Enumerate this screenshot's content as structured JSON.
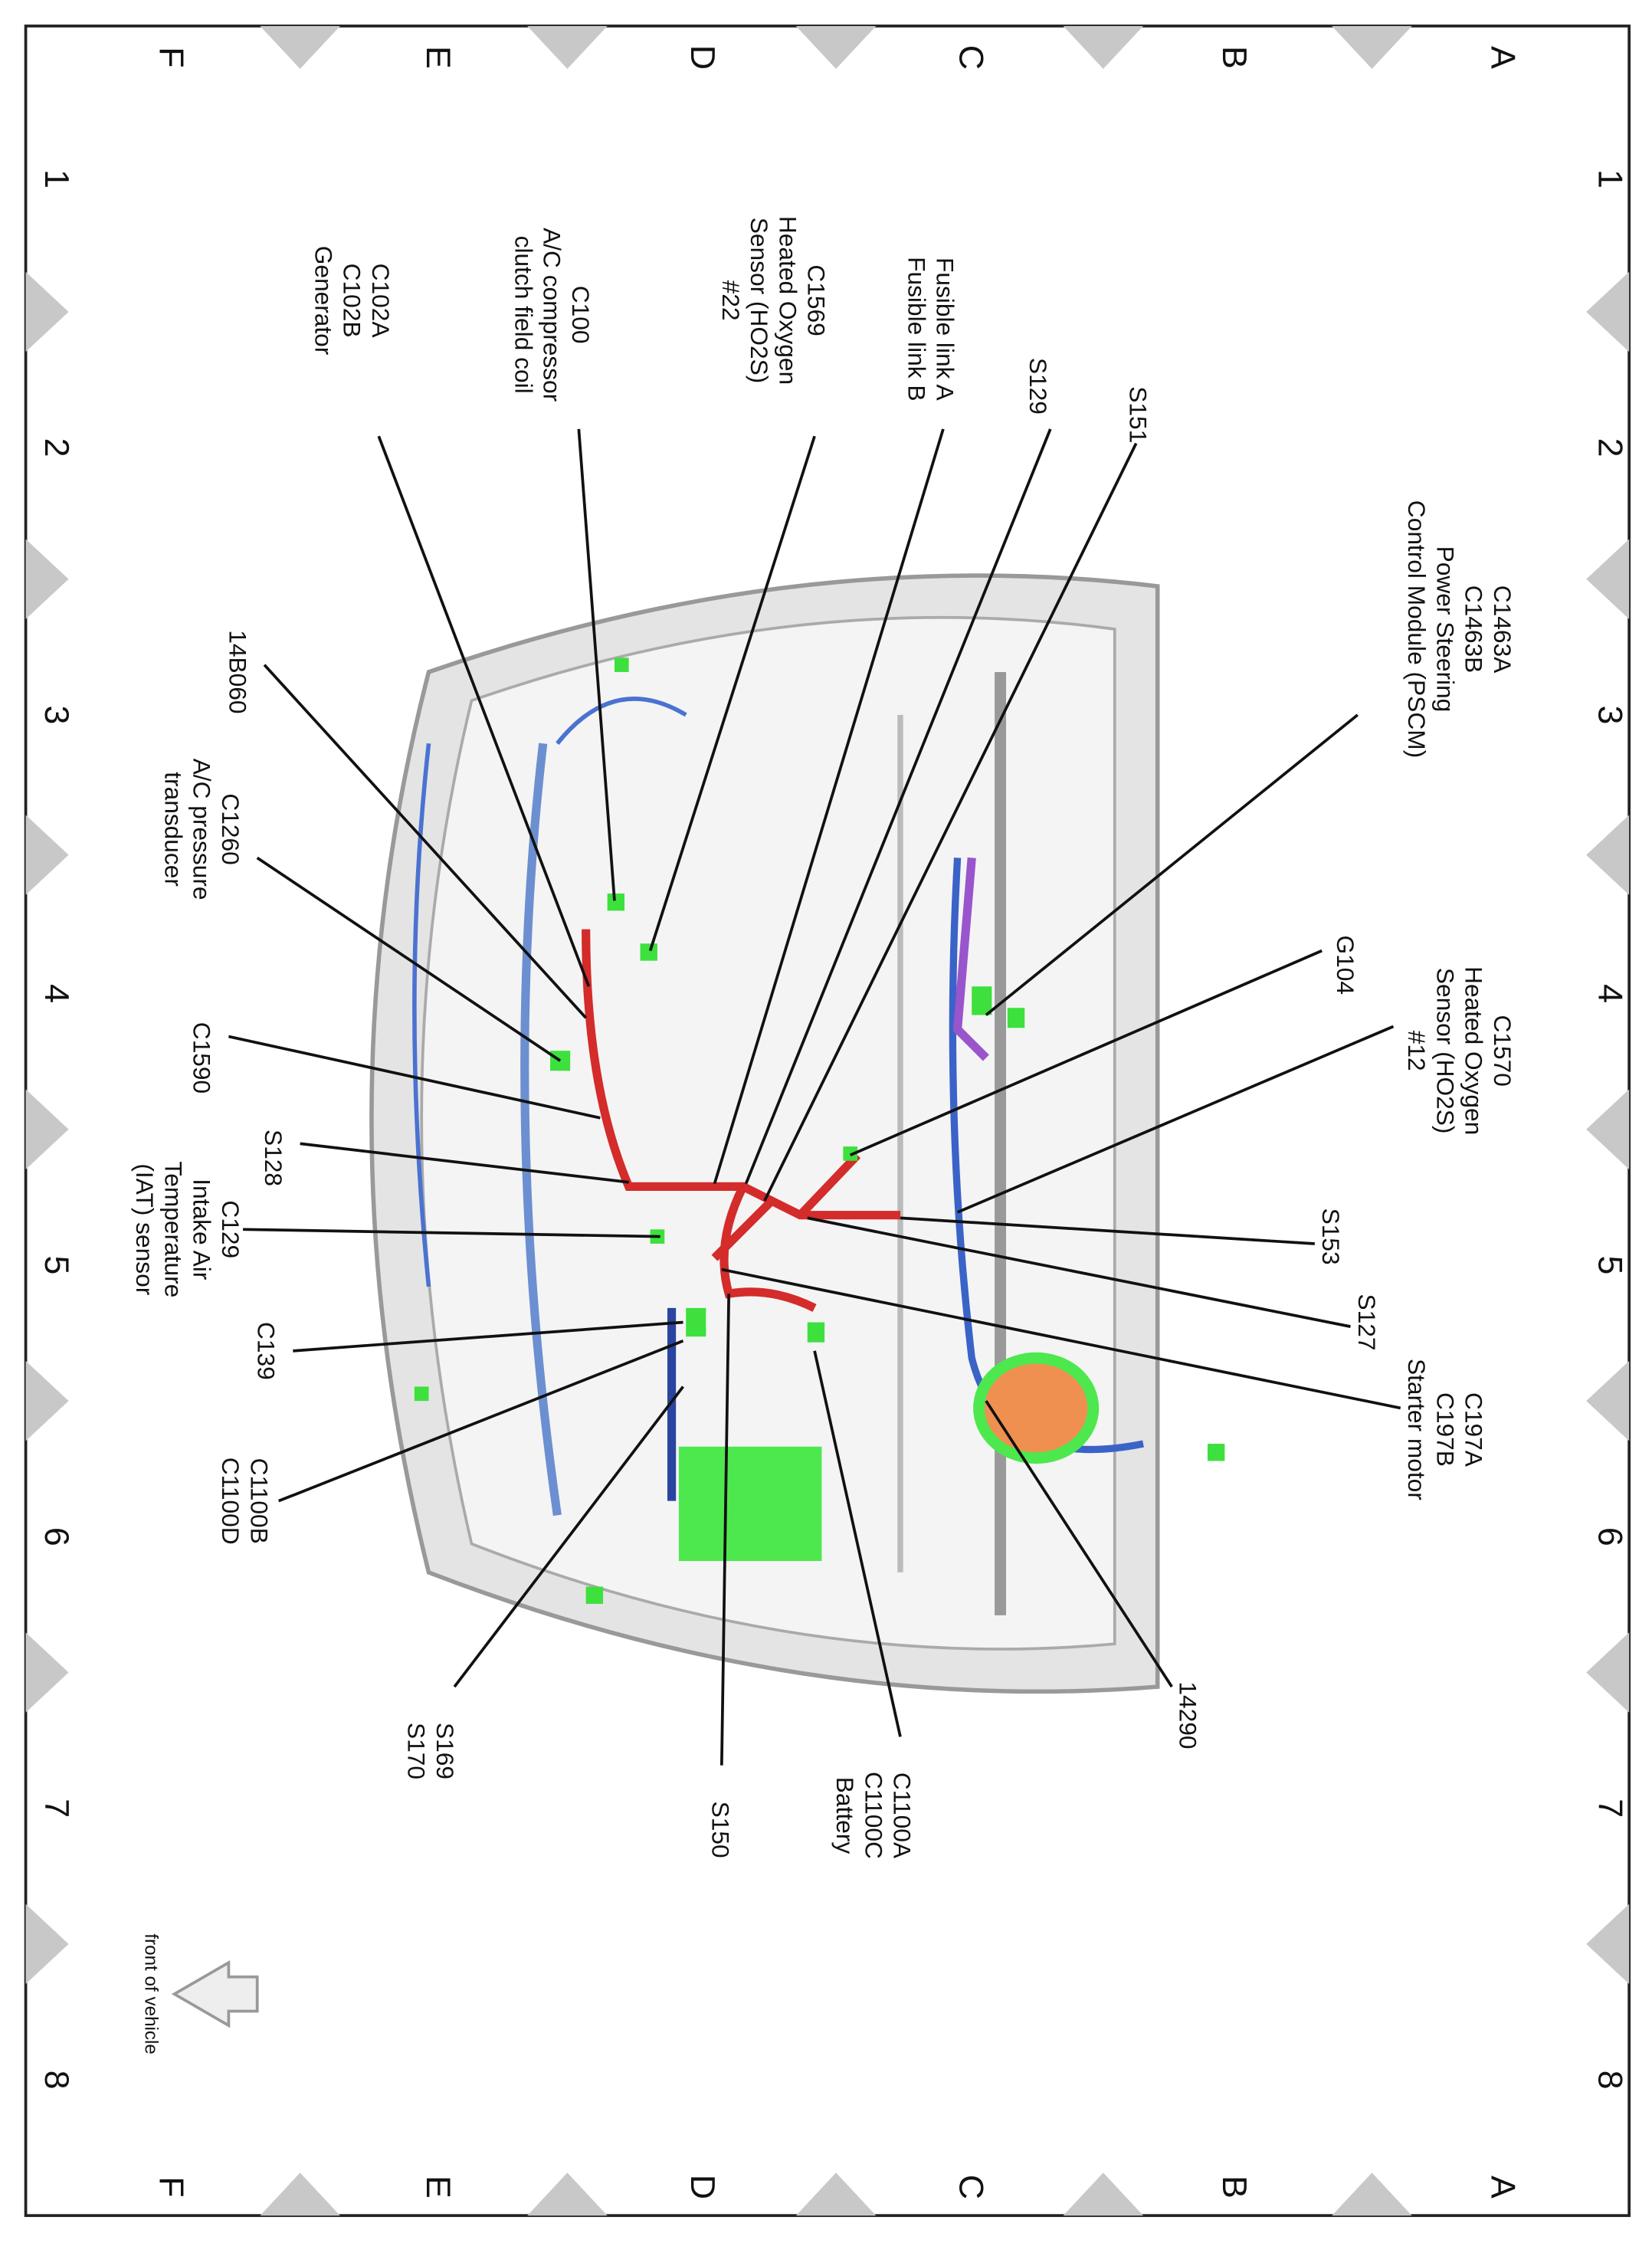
{
  "grid": {
    "columns": [
      "A",
      "B",
      "C",
      "D",
      "E",
      "F"
    ],
    "rows": [
      "1",
      "2",
      "3",
      "4",
      "5",
      "6",
      "7",
      "8"
    ]
  },
  "callouts": [
    {
      "lines": [
        "C1463A",
        "C1463B",
        "Power Steering",
        "Control Module (PSCM)"
      ]
    },
    {
      "lines": [
        "C1570",
        "Heated Oxygen",
        "Sensor (HO2S)",
        "#12"
      ]
    },
    {
      "lines": [
        "G104"
      ]
    },
    {
      "lines": [
        "S153"
      ]
    },
    {
      "lines": [
        "S127"
      ]
    },
    {
      "lines": [
        "C197A",
        "C197B",
        "Starter motor"
      ]
    },
    {
      "lines": [
        "14290"
      ]
    },
    {
      "lines": [
        "C1100A",
        "C1100C",
        "Battery"
      ]
    },
    {
      "lines": [
        "S150"
      ]
    },
    {
      "lines": [
        "S169",
        "S170"
      ]
    },
    {
      "lines": [
        "C1100B",
        "C1100D"
      ]
    },
    {
      "lines": [
        "C139"
      ]
    },
    {
      "lines": [
        "C129",
        "Intake Air",
        "Temperature",
        "(IAT) sensor"
      ]
    },
    {
      "lines": [
        "S128"
      ]
    },
    {
      "lines": [
        "C1590"
      ]
    },
    {
      "lines": [
        "C1260",
        "A/C pressure",
        "transducer"
      ]
    },
    {
      "lines": [
        "14B060"
      ]
    },
    {
      "lines": [
        "C102A",
        "C102B",
        "Generator"
      ]
    },
    {
      "lines": [
        "C100",
        "A/C compressor",
        "clutch field coil"
      ]
    },
    {
      "lines": [
        "C1569",
        "Heated Oxygen",
        "Sensor (HO2S)",
        "#22"
      ]
    },
    {
      "lines": [
        "Fusible link A",
        "Fusible link B"
      ]
    },
    {
      "lines": [
        "S129"
      ]
    },
    {
      "lines": [
        "S151"
      ]
    }
  ],
  "orientation_note": "front of vehicle"
}
